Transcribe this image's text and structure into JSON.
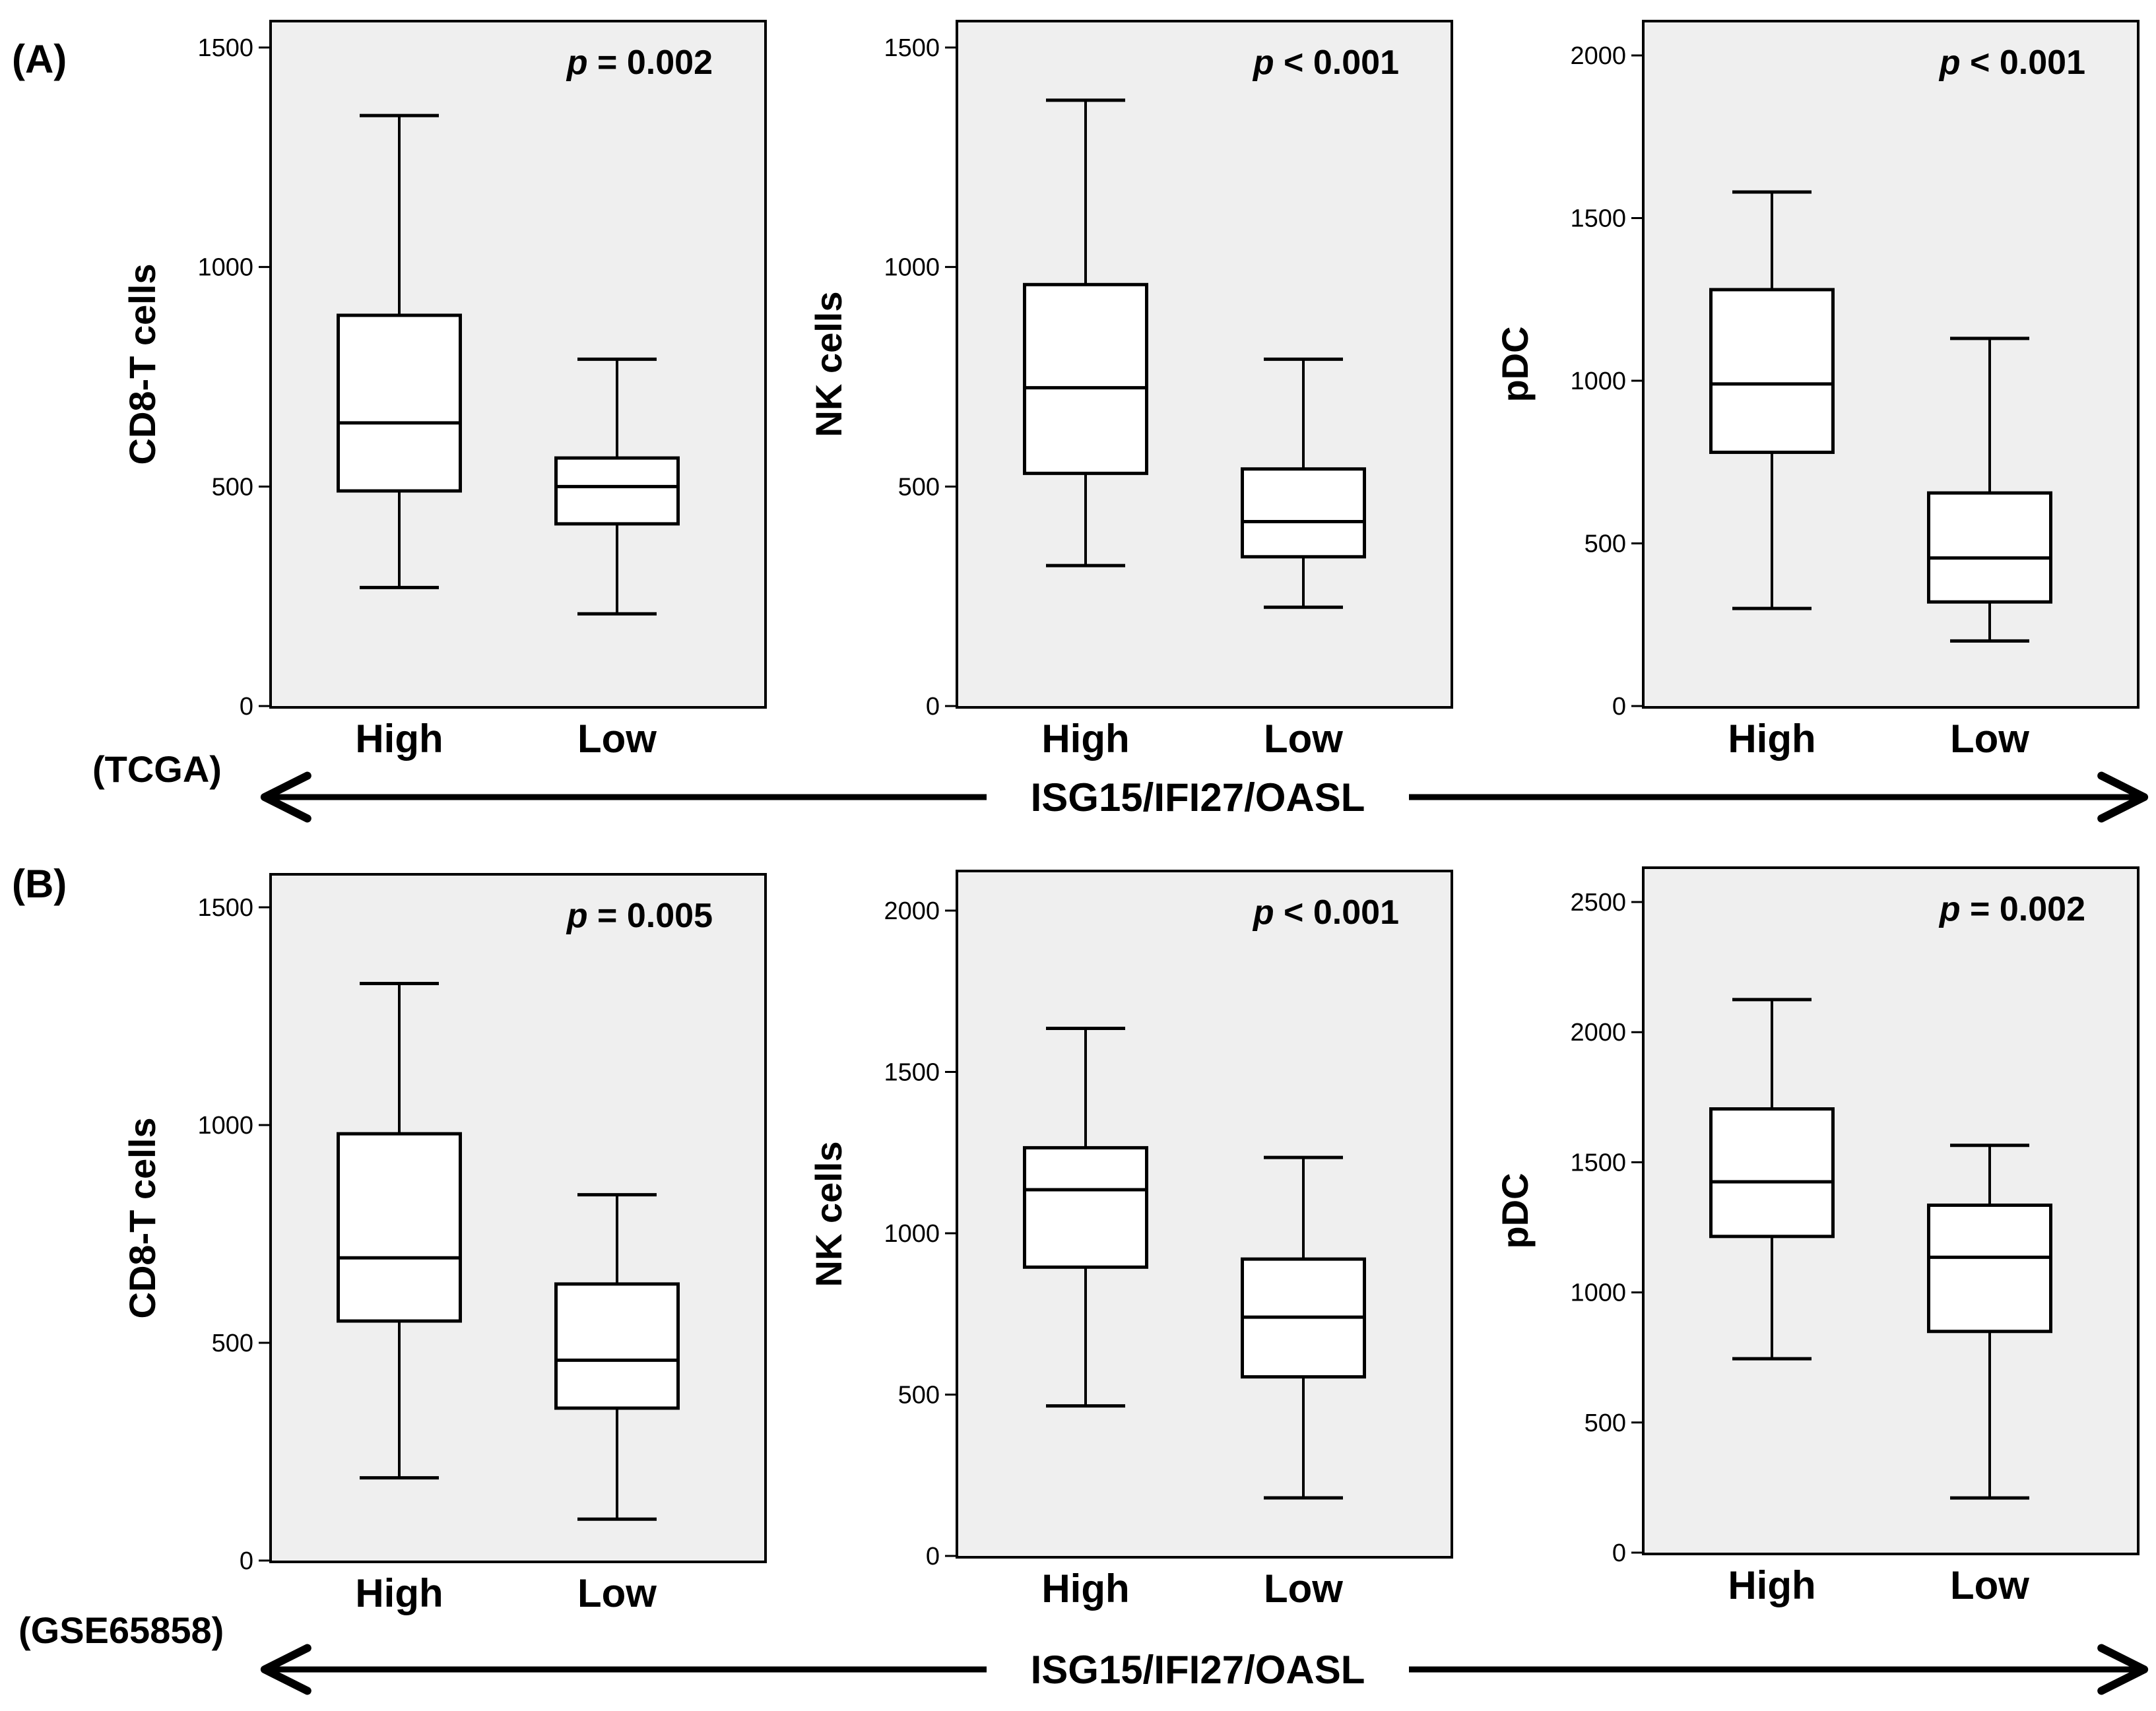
{
  "panels": [
    {
      "letter": "(A)",
      "dataset": "(TCGA)",
      "arrow_label": "ISG15/IFI27/OASL"
    },
    {
      "letter": "(B)",
      "dataset": "(GSE65858)",
      "arrow_label": "ISG15/IFI27/OASL"
    }
  ],
  "chart_data": [
    {
      "type": "box",
      "panel": "A",
      "ylabel": "CD8-T cells",
      "p_prefix": "p",
      "p_rest": " = 0.002",
      "ylim": [
        0,
        1500
      ],
      "yticks": [
        0,
        500,
        1000,
        1500
      ],
      "categories": [
        "High",
        "Low"
      ],
      "boxes": [
        {
          "name": "High",
          "min": 270,
          "q1": 490,
          "median": 645,
          "q3": 890,
          "max": 1345
        },
        {
          "name": "Low",
          "min": 210,
          "q1": 415,
          "median": 500,
          "q3": 565,
          "max": 790
        }
      ]
    },
    {
      "type": "box",
      "panel": "A",
      "ylabel": "NK cells",
      "p_prefix": "p",
      "p_rest": " < 0.001",
      "ylim": [
        0,
        1500
      ],
      "yticks": [
        0,
        500,
        1000,
        1500
      ],
      "categories": [
        "High",
        "Low"
      ],
      "boxes": [
        {
          "name": "High",
          "min": 320,
          "q1": 530,
          "median": 725,
          "q3": 960,
          "max": 1380
        },
        {
          "name": "Low",
          "min": 225,
          "q1": 340,
          "median": 420,
          "q3": 540,
          "max": 790
        }
      ]
    },
    {
      "type": "box",
      "panel": "A",
      "ylabel": "pDC",
      "p_prefix": "p",
      "p_rest": " < 0.001",
      "ylim": [
        0,
        2000
      ],
      "yticks": [
        0,
        500,
        1000,
        1500,
        2000
      ],
      "categories": [
        "High",
        "Low"
      ],
      "boxes": [
        {
          "name": "High",
          "min": 300,
          "q1": 780,
          "median": 990,
          "q3": 1280,
          "max": 1580
        },
        {
          "name": "Low",
          "min": 200,
          "q1": 320,
          "median": 455,
          "q3": 655,
          "max": 1130
        }
      ]
    },
    {
      "type": "box",
      "panel": "B",
      "ylabel": "CD8-T cells",
      "p_prefix": "p",
      "p_rest": " = 0.005",
      "ylim": [
        0,
        1500
      ],
      "yticks": [
        0,
        500,
        1000,
        1500
      ],
      "categories": [
        "High",
        "Low"
      ],
      "boxes": [
        {
          "name": "High",
          "min": 190,
          "q1": 550,
          "median": 695,
          "q3": 980,
          "max": 1325
        },
        {
          "name": "Low",
          "min": 95,
          "q1": 350,
          "median": 460,
          "q3": 635,
          "max": 840
        }
      ]
    },
    {
      "type": "box",
      "panel": "B",
      "ylabel": "NK cells",
      "p_prefix": "p",
      "p_rest": " < 0.001",
      "ylim": [
        0,
        2000
      ],
      "yticks": [
        0,
        500,
        1000,
        1500,
        2000
      ],
      "categories": [
        "High",
        "Low"
      ],
      "boxes": [
        {
          "name": "High",
          "min": 465,
          "q1": 895,
          "median": 1135,
          "q3": 1265,
          "max": 1635
        },
        {
          "name": "Low",
          "min": 180,
          "q1": 555,
          "median": 740,
          "q3": 920,
          "max": 1235
        }
      ]
    },
    {
      "type": "box",
      "panel": "B",
      "ylabel": "pDC",
      "p_prefix": "p",
      "p_rest": " = 0.002",
      "ylim": [
        0,
        2500
      ],
      "yticks": [
        0,
        500,
        1000,
        1500,
        2000,
        2500
      ],
      "categories": [
        "High",
        "Low"
      ],
      "boxes": [
        {
          "name": "High",
          "min": 745,
          "q1": 1215,
          "median": 1425,
          "q3": 1705,
          "max": 2125
        },
        {
          "name": "Low",
          "min": 210,
          "q1": 850,
          "median": 1135,
          "q3": 1335,
          "max": 1565
        }
      ]
    }
  ]
}
